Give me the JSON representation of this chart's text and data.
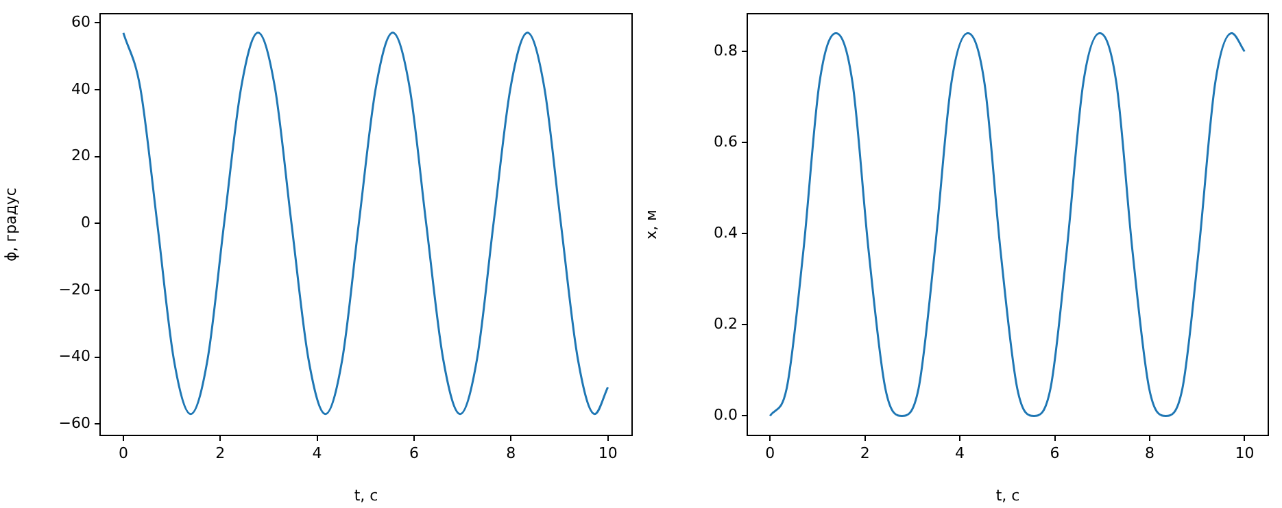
{
  "chart_data": [
    {
      "type": "line",
      "xlabel": "t, c",
      "ylabel": "ϕ, градус",
      "color": "#1f77b4",
      "grid": false,
      "marker": "none",
      "x": [
        0,
        0.35,
        0.7,
        1.04,
        1.39,
        1.74,
        2.08,
        2.43,
        2.78,
        3.13,
        3.47,
        3.82,
        4.17,
        4.52,
        4.86,
        5.21,
        5.56,
        5.91,
        6.25,
        6.6,
        6.95,
        7.3,
        7.64,
        7.99,
        8.34,
        8.69,
        9.03,
        9.38,
        9.73,
        10
      ],
      "values": [
        57,
        40.5,
        0,
        -40.5,
        -57,
        -40.5,
        0,
        40.5,
        57,
        40.5,
        0,
        -40.5,
        -57,
        -40.5,
        0,
        40.5,
        57,
        40.5,
        0,
        -40.5,
        -57,
        -40.5,
        0,
        40.5,
        57,
        40.5,
        0,
        -40.5,
        -57,
        -49
      ],
      "xlim": [
        -0.48,
        10.5
      ],
      "ylim": [
        -63.4,
        62.7
      ],
      "xticks": [
        0,
        2,
        4,
        6,
        8,
        10
      ],
      "yticks": [
        {
          "value": -60,
          "label": "−60"
        },
        {
          "value": -40,
          "label": "−40"
        },
        {
          "value": -20,
          "label": "−20"
        },
        0,
        20,
        40,
        60
      ]
    },
    {
      "type": "line",
      "xlabel": "t, c",
      "ylabel": "x, м",
      "color": "#1f77b4",
      "grid": false,
      "marker": "none",
      "x": [
        0,
        0.35,
        0.7,
        1.04,
        1.39,
        1.74,
        2.08,
        2.43,
        2.78,
        3.13,
        3.47,
        3.82,
        4.17,
        4.52,
        4.86,
        5.21,
        5.56,
        5.91,
        6.25,
        6.6,
        6.95,
        7.3,
        7.64,
        7.99,
        8.34,
        8.69,
        9.03,
        9.38,
        9.73,
        10
      ],
      "values": [
        0,
        0.06,
        0.36,
        0.73,
        0.84,
        0.73,
        0.36,
        0.06,
        0,
        0.06,
        0.36,
        0.73,
        0.84,
        0.73,
        0.36,
        0.06,
        0,
        0.06,
        0.36,
        0.73,
        0.84,
        0.73,
        0.36,
        0.06,
        0,
        0.06,
        0.36,
        0.73,
        0.84,
        0.8
      ],
      "xlim": [
        -0.48,
        10.5
      ],
      "ylim": [
        -0.043,
        0.883
      ],
      "xticks": [
        0,
        2,
        4,
        6,
        8,
        10
      ],
      "yticks": [
        {
          "value": 0,
          "label": "0.0"
        },
        {
          "value": 0.2,
          "label": "0.2"
        },
        {
          "value": 0.4,
          "label": "0.4"
        },
        {
          "value": 0.6,
          "label": "0.6"
        },
        {
          "value": 0.8,
          "label": "0.8"
        }
      ]
    }
  ]
}
